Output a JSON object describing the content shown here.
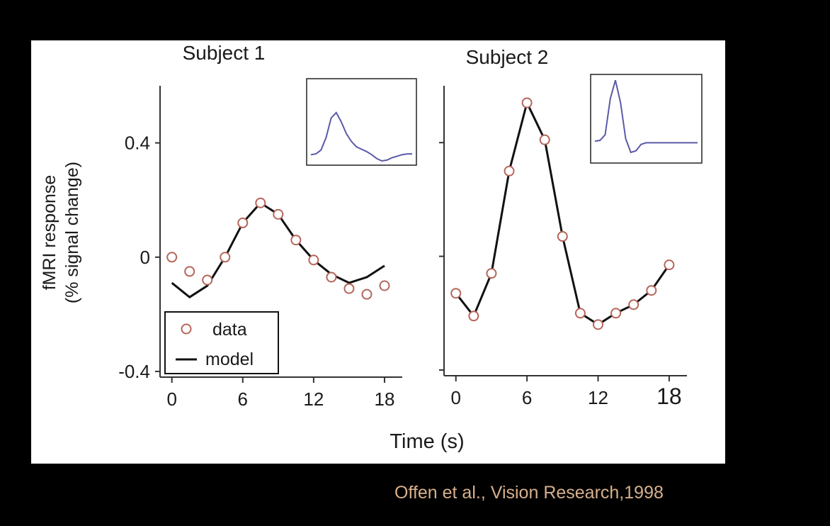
{
  "citation": "Offen et al., Vision Research,1998",
  "colors": {
    "background": "#000000",
    "figure_background": "#ffffff",
    "data_marker": "#b5655a",
    "model_line": "#111111",
    "inset_line": "#5a5aa8",
    "citation_text": "#d7b08c"
  },
  "chart_data": [
    {
      "type": "line",
      "title": "Subject 1",
      "ylabel": [
        "fMRI response",
        "(% signal change)"
      ],
      "xlabel": "Time (s)",
      "xlim": [
        -1,
        19.5
      ],
      "ylim": [
        -0.42,
        0.6
      ],
      "xticks": [
        0,
        6,
        12,
        18
      ],
      "xtick_labels": [
        "0",
        "6",
        "12",
        "18"
      ],
      "yticks": [
        -0.4,
        0,
        0.4
      ],
      "ytick_labels": [
        "-0.4",
        "0",
        "0.4"
      ],
      "legend": {
        "position": "bottom-left",
        "entries": [
          "data",
          "model"
        ]
      },
      "series": [
        {
          "name": "data",
          "kind": "markers",
          "x": [
            0,
            1.5,
            3,
            4.5,
            6,
            7.5,
            9,
            10.5,
            12,
            13.5,
            15,
            16.5,
            18
          ],
          "y": [
            0.0,
            -0.05,
            -0.08,
            0.0,
            0.12,
            0.19,
            0.15,
            0.06,
            -0.01,
            -0.07,
            -0.11,
            -0.13,
            -0.1
          ]
        },
        {
          "name": "model",
          "kind": "line",
          "x": [
            0,
            1.5,
            3,
            4.5,
            6,
            7.5,
            9,
            10.5,
            12,
            13.5,
            15,
            16.5,
            18
          ],
          "y": [
            -0.09,
            -0.14,
            -0.1,
            0.0,
            0.12,
            0.19,
            0.15,
            0.06,
            -0.01,
            -0.06,
            -0.09,
            -0.07,
            -0.03
          ]
        }
      ],
      "inset": {
        "kind": "line",
        "x": [
          0,
          0.05,
          0.1,
          0.15,
          0.2,
          0.25,
          0.3,
          0.35,
          0.4,
          0.45,
          0.5,
          0.55,
          0.6,
          0.65,
          0.7,
          0.75,
          0.8,
          0.85,
          0.9,
          0.95,
          1
        ],
        "y": [
          0.08,
          0.09,
          0.14,
          0.3,
          0.55,
          0.62,
          0.5,
          0.35,
          0.25,
          0.18,
          0.15,
          0.12,
          0.08,
          0.03,
          0.0,
          0.01,
          0.04,
          0.06,
          0.08,
          0.09,
          0.09
        ]
      }
    },
    {
      "type": "line",
      "title": "Subject 2",
      "xlim": [
        -1,
        19.5
      ],
      "ylim": [
        -0.42,
        0.6
      ],
      "xticks": [
        0,
        6,
        12,
        18
      ],
      "xtick_labels": [
        "0",
        "6",
        "12",
        "18"
      ],
      "yticks": [
        -0.4,
        0,
        0.4
      ],
      "series": [
        {
          "name": "data",
          "kind": "markers",
          "x": [
            0,
            1.5,
            3,
            4.5,
            6,
            7.5,
            9,
            10.5,
            12,
            13.5,
            15,
            16.5,
            18
          ],
          "y": [
            -0.13,
            -0.21,
            -0.06,
            0.3,
            0.54,
            0.41,
            0.07,
            -0.2,
            -0.24,
            -0.2,
            -0.17,
            -0.12,
            -0.03
          ]
        },
        {
          "name": "model",
          "kind": "line",
          "x": [
            0,
            1.5,
            3,
            4.5,
            6,
            7.5,
            9,
            10.5,
            12,
            13.5,
            15,
            16.5,
            18
          ],
          "y": [
            -0.13,
            -0.21,
            -0.06,
            0.3,
            0.54,
            0.41,
            0.07,
            -0.2,
            -0.24,
            -0.2,
            -0.17,
            -0.12,
            -0.03
          ]
        }
      ],
      "inset": {
        "kind": "line",
        "x": [
          0,
          0.05,
          0.1,
          0.15,
          0.2,
          0.25,
          0.3,
          0.35,
          0.4,
          0.45,
          0.5,
          0.55,
          0.6,
          0.65,
          0.7,
          0.75,
          0.8,
          0.85,
          0.9,
          0.95,
          1
        ],
        "y": [
          0.22,
          0.23,
          0.3,
          0.75,
          0.98,
          0.7,
          0.25,
          0.08,
          0.1,
          0.18,
          0.2,
          0.2,
          0.2,
          0.2,
          0.2,
          0.2,
          0.2,
          0.2,
          0.2,
          0.2,
          0.2
        ]
      }
    }
  ]
}
